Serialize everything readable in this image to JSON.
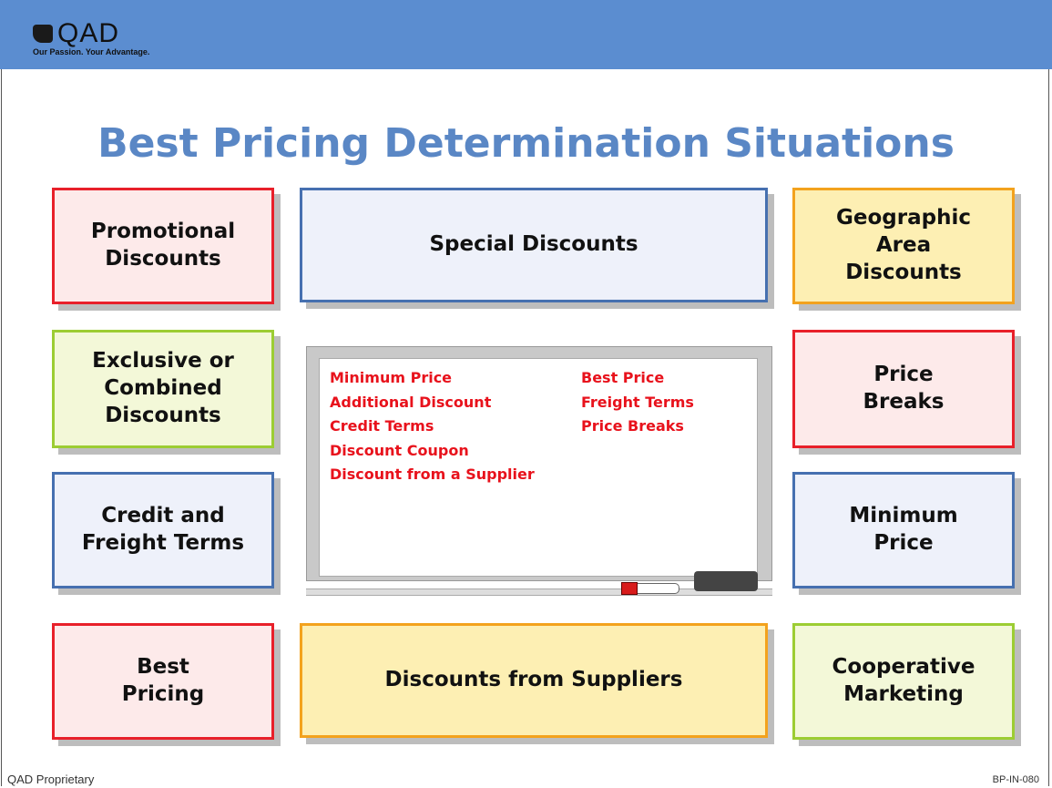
{
  "header": {
    "logo": "QAD",
    "tagline": "Our Passion. Your Advantage."
  },
  "title": "Best Pricing Determination Situations",
  "boxes": [
    {
      "lines": [
        "Promotional",
        "Discounts"
      ]
    },
    {
      "lines": [
        "Special Discounts"
      ]
    },
    {
      "lines": [
        "Geographic",
        "Area",
        "Discounts"
      ]
    },
    {
      "lines": [
        "Exclusive or",
        "Combined",
        "Discounts"
      ]
    },
    {
      "lines": [
        "Price",
        "Breaks"
      ]
    },
    {
      "lines": [
        "Credit and",
        "Freight Terms"
      ]
    },
    {
      "lines": [
        "Minimum",
        "Price"
      ]
    },
    {
      "lines": [
        "Best",
        "Pricing"
      ]
    },
    {
      "lines": [
        "Discounts from Suppliers"
      ]
    },
    {
      "lines": [
        "Cooperative",
        "Marketing"
      ]
    }
  ],
  "whiteboard": {
    "columns": [
      [
        "Minimum Price",
        "Additional Discount",
        "Credit Terms",
        "Discount Coupon",
        "Discount from a Supplier"
      ],
      [
        "Best Price",
        "Freight Terms",
        "Price Breaks"
      ]
    ]
  },
  "footer": {
    "left": "QAD Proprietary",
    "right": "BP-IN-080"
  }
}
